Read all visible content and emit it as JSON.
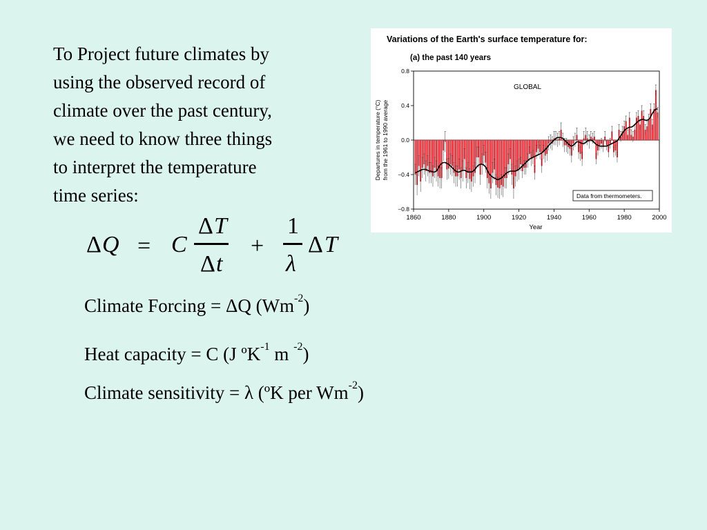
{
  "intro_lines": [
    "To Project future climates by",
    "using the observed record of",
    "climate over the past century,",
    "we need to know three things",
    "to interpret the temperature",
    "time series:"
  ],
  "equation": {
    "lhs_delta": "Δ",
    "lhs_var": "Q",
    "equals": "=",
    "coef": "C",
    "num_delta": "Δ",
    "num_var": "T",
    "den_delta": "Δ",
    "den_var": "t",
    "plus": "+",
    "one": "1",
    "lambda": "λ",
    "rhs_delta": "Δ",
    "rhs_var": "T"
  },
  "definitions": {
    "forcing": {
      "text": "Climate Forcing = ΔQ (Wm",
      "sup": "-2",
      "tail": ")"
    },
    "heat": {
      "text": "Heat capacity = C  (J ºK",
      "sup1": "-1",
      "mid": " m ",
      "sup2": "-2",
      "tail": ")"
    },
    "sensitivity": {
      "text": "Climate sensitivity = λ  (ºK per Wm",
      "sup": "-2",
      "tail": ")"
    }
  },
  "chart_data": {
    "type": "bar",
    "title": "Variations of the Earth's surface temperature for:",
    "subtitle": "(a) the past 140 years",
    "region_label": "GLOBAL",
    "source_note": "Data from thermometers.",
    "xlabel": "Year",
    "ylabel_line1": "Departures in temperature (°C)",
    "ylabel_line2": "from the 1961 to 1990 average",
    "xlim": [
      1860,
      2000
    ],
    "ylim": [
      -0.8,
      0.8
    ],
    "xticks": [
      1860,
      1880,
      1900,
      1920,
      1940,
      1960,
      1980,
      2000
    ],
    "yticks": [
      -0.8,
      -0.4,
      0.0,
      0.4,
      0.8
    ],
    "ytick_labels": [
      "−0.8",
      "−0.4",
      "0.0",
      "0.4",
      "0.8"
    ],
    "bar_color": "#e8202a",
    "curve_color": "#000000",
    "series": [
      {
        "x": [
          1861,
          1862,
          1863,
          1864,
          1865,
          1866,
          1867,
          1868,
          1869,
          1870,
          1871,
          1872,
          1873,
          1874,
          1875,
          1876,
          1877,
          1878,
          1879,
          1880,
          1881,
          1882,
          1883,
          1884,
          1885,
          1886,
          1887,
          1888,
          1889,
          1890,
          1891,
          1892,
          1893,
          1894,
          1895,
          1896,
          1897,
          1898,
          1899,
          1900,
          1901,
          1902,
          1903,
          1904,
          1905,
          1906,
          1907,
          1908,
          1909,
          1910,
          1911,
          1912,
          1913,
          1914,
          1915,
          1916,
          1917,
          1918,
          1919,
          1920,
          1921,
          1922,
          1923,
          1924,
          1925,
          1926,
          1927,
          1928,
          1929,
          1930,
          1931,
          1932,
          1933,
          1934,
          1935,
          1936,
          1937,
          1938,
          1939,
          1940,
          1941,
          1942,
          1943,
          1944,
          1945,
          1946,
          1947,
          1948,
          1949,
          1950,
          1951,
          1952,
          1953,
          1954,
          1955,
          1956,
          1957,
          1958,
          1959,
          1960,
          1961,
          1962,
          1963,
          1964,
          1965,
          1966,
          1967,
          1968,
          1969,
          1970,
          1971,
          1972,
          1973,
          1974,
          1975,
          1976,
          1977,
          1978,
          1979,
          1980,
          1981,
          1982,
          1983,
          1984,
          1985,
          1986,
          1987,
          1988,
          1989,
          1990,
          1991,
          1992,
          1993,
          1994,
          1995,
          1996,
          1997,
          1998,
          1999
        ],
        "anomaly": [
          -0.4,
          -0.52,
          -0.3,
          -0.48,
          -0.32,
          -0.28,
          -0.36,
          -0.3,
          -0.38,
          -0.38,
          -0.42,
          -0.32,
          -0.36,
          -0.42,
          -0.44,
          -0.44,
          -0.12,
          -0.02,
          -0.34,
          -0.33,
          -0.28,
          -0.3,
          -0.38,
          -0.42,
          -0.42,
          -0.34,
          -0.44,
          -0.36,
          -0.22,
          -0.44,
          -0.38,
          -0.45,
          -0.48,
          -0.42,
          -0.38,
          -0.2,
          -0.2,
          -0.4,
          -0.28,
          -0.18,
          -0.26,
          -0.44,
          -0.5,
          -0.56,
          -0.38,
          -0.34,
          -0.52,
          -0.55,
          -0.56,
          -0.52,
          -0.54,
          -0.44,
          -0.44,
          -0.28,
          -0.22,
          -0.4,
          -0.56,
          -0.42,
          -0.36,
          -0.34,
          -0.28,
          -0.36,
          -0.32,
          -0.32,
          -0.24,
          -0.16,
          -0.22,
          -0.2,
          -0.38,
          -0.14,
          -0.1,
          -0.14,
          -0.3,
          -0.14,
          -0.18,
          -0.16,
          -0.04,
          -0.02,
          -0.04,
          0.02,
          0.02,
          0.0,
          0.02,
          0.12,
          0.0,
          -0.06,
          -0.06,
          -0.08,
          -0.1,
          -0.18,
          -0.04,
          0.0,
          0.06,
          -0.14,
          -0.16,
          -0.22,
          0.02,
          0.06,
          0.02,
          -0.02,
          0.04,
          0.02,
          0.04,
          -0.22,
          -0.12,
          -0.06,
          -0.04,
          -0.08,
          0.04,
          -0.06,
          -0.14,
          -0.04,
          0.1,
          -0.14,
          -0.12,
          -0.2,
          0.12,
          0.04,
          0.1,
          0.16,
          0.22,
          0.06,
          0.26,
          0.06,
          0.04,
          0.12,
          0.26,
          0.28,
          0.18,
          0.34,
          0.28,
          0.12,
          0.16,
          0.24,
          0.36,
          0.18,
          0.36,
          0.58,
          0.32
        ],
        "smoothed": [
          -0.38,
          -0.37,
          -0.36,
          -0.35,
          -0.34,
          -0.34,
          -0.34,
          -0.35,
          -0.36,
          -0.36,
          -0.37,
          -0.37,
          -0.36,
          -0.33,
          -0.29,
          -0.27,
          -0.26,
          -0.26,
          -0.27,
          -0.28,
          -0.3,
          -0.32,
          -0.34,
          -0.36,
          -0.37,
          -0.37,
          -0.36,
          -0.35,
          -0.35,
          -0.36,
          -0.37,
          -0.37,
          -0.37,
          -0.36,
          -0.34,
          -0.31,
          -0.29,
          -0.28,
          -0.28,
          -0.29,
          -0.31,
          -0.35,
          -0.39,
          -0.41,
          -0.43,
          -0.44,
          -0.45,
          -0.46,
          -0.45,
          -0.44,
          -0.42,
          -0.4,
          -0.38,
          -0.37,
          -0.36,
          -0.36,
          -0.36,
          -0.36,
          -0.35,
          -0.34,
          -0.32,
          -0.3,
          -0.28,
          -0.26,
          -0.24,
          -0.22,
          -0.21,
          -0.2,
          -0.19,
          -0.18,
          -0.17,
          -0.16,
          -0.15,
          -0.13,
          -0.11,
          -0.09,
          -0.06,
          -0.04,
          -0.02,
          0.0,
          0.02,
          0.03,
          0.03,
          0.03,
          0.02,
          0.0,
          -0.02,
          -0.04,
          -0.06,
          -0.07,
          -0.06,
          -0.04,
          -0.02,
          -0.02,
          -0.03,
          -0.04,
          -0.04,
          -0.03,
          -0.01,
          0.0,
          0.0,
          -0.01,
          -0.03,
          -0.05,
          -0.06,
          -0.07,
          -0.07,
          -0.07,
          -0.07,
          -0.07,
          -0.06,
          -0.05,
          -0.04,
          -0.03,
          -0.02,
          -0.01,
          0.02,
          0.05,
          0.08,
          0.11,
          0.13,
          0.14,
          0.15,
          0.15,
          0.16,
          0.18,
          0.2,
          0.22,
          0.23,
          0.24,
          0.24,
          0.23,
          0.23,
          0.24,
          0.27,
          0.31,
          0.34,
          0.36,
          0.36
        ]
      }
    ]
  }
}
